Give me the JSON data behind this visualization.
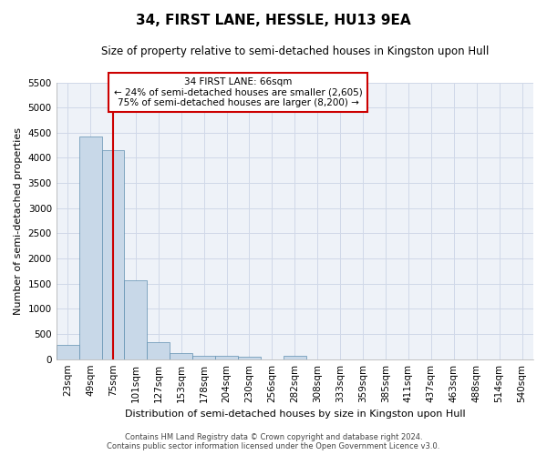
{
  "title": "34, FIRST LANE, HESSLE, HU13 9EA",
  "subtitle": "Size of property relative to semi-detached houses in Kingston upon Hull",
  "xlabel": "Distribution of semi-detached houses by size in Kingston upon Hull",
  "ylabel": "Number of semi-detached properties",
  "footer": "Contains HM Land Registry data © Crown copyright and database right 2024.\nContains public sector information licensed under the Open Government Licence v3.0.",
  "categories": [
    "23sqm",
    "49sqm",
    "75sqm",
    "101sqm",
    "127sqm",
    "153sqm",
    "178sqm",
    "204sqm",
    "230sqm",
    "256sqm",
    "282sqm",
    "308sqm",
    "333sqm",
    "359sqm",
    "385sqm",
    "411sqm",
    "437sqm",
    "463sqm",
    "488sqm",
    "514sqm",
    "540sqm"
  ],
  "values": [
    280,
    4430,
    4160,
    1560,
    330,
    120,
    75,
    60,
    55,
    0,
    65,
    0,
    0,
    0,
    0,
    0,
    0,
    0,
    0,
    0,
    0
  ],
  "ylim": [
    0,
    5500
  ],
  "yticks": [
    0,
    500,
    1000,
    1500,
    2000,
    2500,
    3000,
    3500,
    4000,
    4500,
    5000,
    5500
  ],
  "bar_color": "#c8d8e8",
  "bar_edge_color": "#6090b0",
  "property_sqm": 66,
  "annotation_title": "34 FIRST LANE: 66sqm",
  "annotation_line1": "← 24% of semi-detached houses are smaller (2,605)",
  "annotation_line2": "75% of semi-detached houses are larger (8,200) →",
  "annotation_box_color": "#ffffff",
  "annotation_box_edge": "#cc0000",
  "grid_color": "#d0d8e8",
  "bg_color": "#eef2f8",
  "vline_color": "#cc0000",
  "vline_x": 2.0,
  "title_fontsize": 11,
  "subtitle_fontsize": 8.5,
  "xlabel_fontsize": 8,
  "ylabel_fontsize": 8,
  "tick_fontsize": 7.5,
  "footer_fontsize": 6
}
